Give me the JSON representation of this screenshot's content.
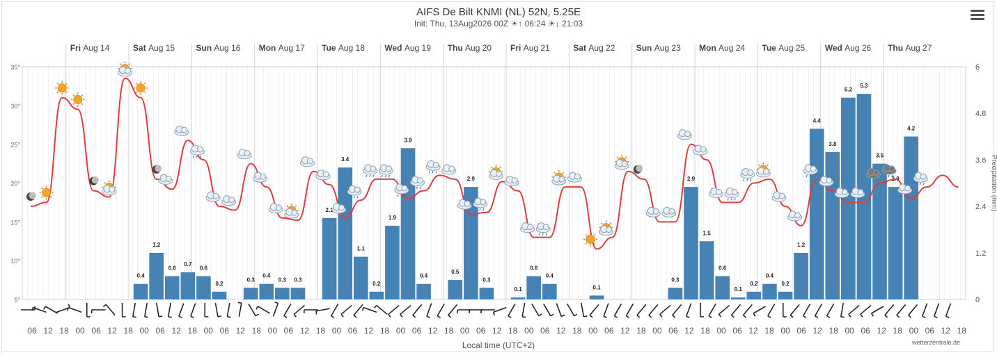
{
  "title": "AIFS De Bilt KNMI (NL) 52N, 5.25E",
  "subtitle": {
    "init": "Init: Thu, 13Aug2026 00Z",
    "sunrise": "06:24",
    "sunset": "21:03"
  },
  "menu_icon": "hamburger-menu-icon",
  "credit": "wetterzentrale.de",
  "colors": {
    "temperature": "#e03c3c",
    "precipitation": "#4682b4",
    "grid": "#e6e6e6",
    "wind": "#222222"
  },
  "chart_data": {
    "type": "bar+line",
    "xlabel": "Local time (UTC+2)",
    "x_step_hours": 6,
    "x_start": "Thu 13 Aug 12",
    "hour_labels": [
      "06",
      "12",
      "18",
      "00",
      "06",
      "12",
      "18",
      "00",
      "06",
      "12",
      "18",
      "00",
      "06",
      "12",
      "18",
      "00",
      "06",
      "12",
      "18",
      "00",
      "06",
      "12",
      "18",
      "00",
      "06",
      "12",
      "18",
      "00",
      "06",
      "12",
      "18",
      "00",
      "06",
      "12",
      "18",
      "00",
      "06",
      "12",
      "18",
      "00",
      "06",
      "12",
      "18",
      "00",
      "06",
      "12",
      "18",
      "00",
      "06",
      "12",
      "18",
      "00",
      "06",
      "12",
      "18",
      "00",
      "06",
      "12",
      "18",
      "00",
      "06",
      "12",
      "18",
      "00",
      "06",
      "12",
      "18",
      "00",
      "06",
      "12",
      "18",
      "00",
      "06",
      "12",
      "18",
      "00",
      "06",
      "12",
      "18",
      "00",
      "06",
      "12",
      "18",
      "00",
      "06",
      "12",
      "18",
      "00",
      "06",
      "12",
      "18",
      "00",
      "06",
      "12",
      "18",
      "00",
      "06",
      "12",
      "18",
      "00",
      "06",
      "12",
      "18",
      "00",
      "06",
      "12",
      "18",
      "00",
      "06",
      "12",
      "18",
      "00",
      "06",
      "12",
      "18",
      "00",
      "06",
      "12",
      "18",
      "00",
      "06",
      "12",
      "18",
      "00",
      "06",
      "12",
      "18",
      "00",
      "06",
      "12",
      "18",
      "00",
      "06",
      "12",
      "18",
      "00",
      "06",
      "12",
      "18",
      "00",
      "06",
      "12",
      "18",
      "00",
      "06",
      "12",
      "18",
      "00",
      "06",
      "12",
      "18",
      "00",
      "06",
      "12",
      "18",
      "00",
      "06",
      "12",
      "18",
      "00",
      "06",
      "12",
      "18",
      "00",
      "06",
      "12",
      "18",
      "00",
      "06",
      "12",
      "18",
      "00",
      "06",
      "12",
      "18"
    ],
    "day_labels": [
      {
        "dow": "Fri",
        "date": "Aug 14"
      },
      {
        "dow": "Sat",
        "date": "Aug 15"
      },
      {
        "dow": "Sun",
        "date": "Aug 16"
      },
      {
        "dow": "Mon",
        "date": "Aug 17"
      },
      {
        "dow": "Tue",
        "date": "Aug 18"
      },
      {
        "dow": "Wed",
        "date": "Aug 19"
      },
      {
        "dow": "Thu",
        "date": "Aug 20"
      },
      {
        "dow": "Fri",
        "date": "Aug 21"
      },
      {
        "dow": "Sat",
        "date": "Aug 22"
      },
      {
        "dow": "Sun",
        "date": "Aug 23"
      },
      {
        "dow": "Mon",
        "date": "Aug 24"
      },
      {
        "dow": "Tue",
        "date": "Aug 25"
      },
      {
        "dow": "Wed",
        "date": "Aug 26"
      },
      {
        "dow": "Thu",
        "date": "Aug 27"
      }
    ],
    "y_left": {
      "ticks": [
        "5°",
        "10°",
        "15°",
        "20°",
        "25°",
        "30°",
        "35°"
      ],
      "min": 5,
      "max": 35
    },
    "y_right": {
      "label": "Precipitation (mm)",
      "ticks": [
        "0",
        "1.2",
        "2.4",
        "3.6",
        "4.8",
        "6"
      ],
      "min": 0,
      "max": 6
    },
    "temperature": [
      17,
      17.5,
      31,
      29.5,
      19,
      18.2,
      33.5,
      31,
      20.5,
      19.2,
      25.5,
      23,
      17,
      16.5,
      22.5,
      19.5,
      15.5,
      15.2,
      21.5,
      19.8,
      15.5,
      17.8,
      20.5,
      20.5,
      18,
      19,
      21,
      20.5,
      16,
      16.2,
      20.2,
      19,
      13,
      13,
      19.5,
      19.5,
      11.5,
      13,
      21.5,
      20.5,
      15,
      15,
      25,
      23,
      17.5,
      17.5,
      20,
      20.5,
      17,
      14.5,
      20.5,
      19,
      17.5,
      17.5,
      20,
      20.5,
      18,
      19.5,
      21,
      19.5
    ],
    "precipitation": [
      {
        "x": 7,
        "v": 0.4,
        "label": "0.4"
      },
      {
        "x": 8,
        "v": 1.2,
        "label": "1.2"
      },
      {
        "x": 9,
        "v": 0.6,
        "label": "0.6"
      },
      {
        "x": 10,
        "v": 0.7,
        "label": "0.7"
      },
      {
        "x": 11,
        "v": 0.6,
        "label": "0.6"
      },
      {
        "x": 12,
        "v": 0.2,
        "label": "0.2"
      },
      {
        "x": 14,
        "v": 0.3,
        "label": "0.3"
      },
      {
        "x": 15,
        "v": 0.4,
        "label": "0.4"
      },
      {
        "x": 16,
        "v": 0.3,
        "label": "0.3"
      },
      {
        "x": 17,
        "v": 0.3,
        "label": "0.3"
      },
      {
        "x": 19,
        "v": 2.1,
        "label": "2.1"
      },
      {
        "x": 20,
        "v": 3.4,
        "label": "3.4"
      },
      {
        "x": 21,
        "v": 1.1,
        "label": "1.1"
      },
      {
        "x": 22,
        "v": 0.2,
        "label": "0.2"
      },
      {
        "x": 23,
        "v": 1.9,
        "label": "1.9"
      },
      {
        "x": 24,
        "v": 3.9,
        "label": "3.9"
      },
      {
        "x": 25,
        "v": 0.4,
        "label": "0.4"
      },
      {
        "x": 27,
        "v": 0.5,
        "label": "0.5"
      },
      {
        "x": 28,
        "v": 2.9,
        "label": "2.9"
      },
      {
        "x": 29,
        "v": 0.3,
        "label": "0.3"
      },
      {
        "x": 31,
        "v": 0.05,
        "label": "0.1"
      },
      {
        "x": 32,
        "v": 0.6,
        "label": "0.6"
      },
      {
        "x": 33,
        "v": 0.4,
        "label": "0.4"
      },
      {
        "x": 36,
        "v": 0.1,
        "label": "0.1"
      },
      {
        "x": 41,
        "v": 0.3,
        "label": "0.3"
      },
      {
        "x": 42,
        "v": 2.9,
        "label": "2.9"
      },
      {
        "x": 43,
        "v": 1.5,
        "label": "1.5"
      },
      {
        "x": 44,
        "v": 0.6,
        "label": "0.6"
      },
      {
        "x": 45,
        "v": 0.05,
        "label": "0.1"
      },
      {
        "x": 46,
        "v": 0.2,
        "label": "0.2"
      },
      {
        "x": 47,
        "v": 0.4,
        "label": "0.4"
      },
      {
        "x": 48,
        "v": 0.2,
        "label": "0.2"
      },
      {
        "x": 49,
        "v": 1.2,
        "label": "1.2"
      },
      {
        "x": 50,
        "v": 4.4,
        "label": "4.4"
      },
      {
        "x": 51,
        "v": 3.8,
        "label": "3.8"
      },
      {
        "x": 52,
        "v": 5.2,
        "label": "5.2"
      },
      {
        "x": 53,
        "v": 5.3,
        "label": "5.3"
      },
      {
        "x": 54,
        "v": 3.5,
        "label": "3.5"
      },
      {
        "x": 55,
        "v": 2.9,
        "label": "2.9"
      },
      {
        "x": 56,
        "v": 4.2,
        "label": "4.2"
      }
    ],
    "wind_direction_deg": [
      270,
      110,
      120,
      250,
      110,
      0,
      90,
      140,
      0,
      10,
      10,
      350,
      10,
      20,
      20,
      0,
      350,
      10,
      190,
      330,
      120,
      200,
      30,
      50,
      90,
      80,
      30,
      50,
      40,
      110,
      130,
      50,
      50,
      40,
      20,
      30,
      40,
      90,
      90,
      90,
      70,
      30,
      10,
      330,
      330,
      340,
      330,
      350,
      40,
      20,
      30,
      30,
      40,
      40,
      50,
      40,
      20,
      0,
      30,
      50,
      40,
      40,
      60,
      30,
      0,
      40,
      30,
      30,
      30,
      10,
      50,
      50,
      60,
      40,
      40,
      40,
      20,
      20,
      20
    ],
    "weather_icons": [
      {
        "x": 0,
        "icon": "moon"
      },
      {
        "x": 1,
        "icon": "sun"
      },
      {
        "x": 2,
        "icon": "sun"
      },
      {
        "x": 3,
        "icon": "sun"
      },
      {
        "x": 4,
        "icon": "moon"
      },
      {
        "x": 5,
        "icon": "sun-cloud"
      },
      {
        "x": 6,
        "icon": "sun-cloud"
      },
      {
        "x": 7,
        "icon": "sun"
      },
      {
        "x": 8,
        "icon": "moon"
      },
      {
        "x": 8.6,
        "icon": "cloud"
      },
      {
        "x": 9.6,
        "icon": "cloud"
      },
      {
        "x": 10.6,
        "icon": "rain"
      },
      {
        "x": 11.6,
        "icon": "cloud"
      },
      {
        "x": 12.6,
        "icon": "cloud"
      },
      {
        "x": 13.6,
        "icon": "cloud"
      },
      {
        "x": 14.6,
        "icon": "cloud"
      },
      {
        "x": 15.6,
        "icon": "cloud"
      },
      {
        "x": 16.6,
        "icon": "sun-cloud"
      },
      {
        "x": 17.6,
        "icon": "cloud"
      },
      {
        "x": 18.6,
        "icon": "cloud"
      },
      {
        "x": 19.6,
        "icon": "cloud"
      },
      {
        "x": 20.6,
        "icon": "rain"
      },
      {
        "x": 21.6,
        "icon": "rain"
      },
      {
        "x": 22.6,
        "icon": "rain"
      },
      {
        "x": 23.6,
        "icon": "rain"
      },
      {
        "x": 24.6,
        "icon": "rain"
      },
      {
        "x": 25.6,
        "icon": "rain"
      },
      {
        "x": 26.6,
        "icon": "cloud"
      },
      {
        "x": 27.6,
        "icon": "cloud"
      },
      {
        "x": 28.6,
        "icon": "rain"
      },
      {
        "x": 29.6,
        "icon": "sun-cloud"
      },
      {
        "x": 30.6,
        "icon": "cloud"
      },
      {
        "x": 31.6,
        "icon": "cloud"
      },
      {
        "x": 32.6,
        "icon": "rain"
      },
      {
        "x": 33.6,
        "icon": "sun-cloud"
      },
      {
        "x": 34.6,
        "icon": "cloud"
      },
      {
        "x": 35.6,
        "icon": "sun"
      },
      {
        "x": 36.6,
        "icon": "sun-cloud"
      },
      {
        "x": 37.6,
        "icon": "sun-cloud"
      },
      {
        "x": 38.6,
        "icon": "moon"
      },
      {
        "x": 39.6,
        "icon": "cloud"
      },
      {
        "x": 40.6,
        "icon": "cloud"
      },
      {
        "x": 41.6,
        "icon": "cloud"
      },
      {
        "x": 42.6,
        "icon": "cloud"
      },
      {
        "x": 43.6,
        "icon": "cloud"
      },
      {
        "x": 44.6,
        "icon": "rain"
      },
      {
        "x": 45.6,
        "icon": "rain"
      },
      {
        "x": 46.6,
        "icon": "sun-cloud"
      },
      {
        "x": 47.6,
        "icon": "cloud"
      },
      {
        "x": 48.6,
        "icon": "cloud"
      },
      {
        "x": 49.6,
        "icon": "rain"
      },
      {
        "x": 50.6,
        "icon": "rain"
      },
      {
        "x": 51.6,
        "icon": "rain"
      },
      {
        "x": 52.6,
        "icon": "rain"
      },
      {
        "x": 53.6,
        "icon": "heavy-rain"
      },
      {
        "x": 54.6,
        "icon": "heavy-rain"
      },
      {
        "x": 55.6,
        "icon": "rain"
      },
      {
        "x": 56.6,
        "icon": "rain"
      }
    ]
  }
}
